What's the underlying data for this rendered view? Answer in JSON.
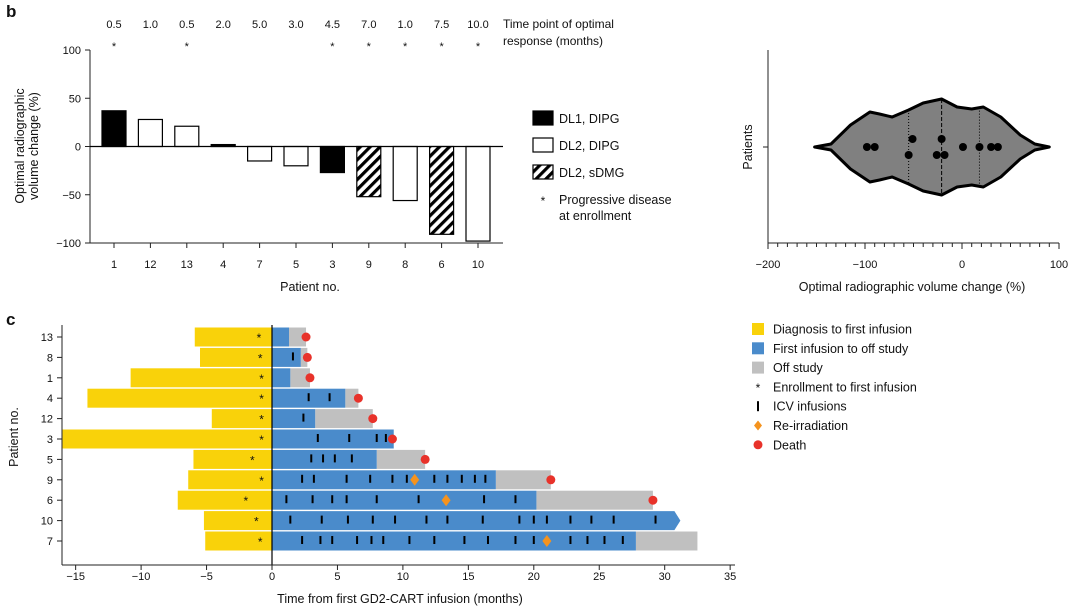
{
  "colors": {
    "diagnosis": "#f9d20a",
    "infusion": "#4a8bcb",
    "offstudy": "#c0c0c0",
    "reirradiation": "#f5931e",
    "death": "#e8322a",
    "violin": "#808080"
  },
  "chart_data": [
    {
      "panel_label": "b",
      "type": "bar",
      "xlabel": "Patient no.",
      "ylabel_lines": [
        "Optimal radiographic",
        "volume change (%)"
      ],
      "ylim": [
        -100,
        100
      ],
      "yticks": [
        100,
        50,
        0,
        -50,
        -100
      ],
      "yticks_labels": [
        "100",
        "50",
        "0",
        "−50",
        "−100"
      ],
      "categories": [
        "1",
        "12",
        "13",
        "4",
        "7",
        "5",
        "3",
        "9",
        "8",
        "6",
        "10"
      ],
      "values": [
        37,
        28,
        21,
        2,
        -15,
        -20,
        -27,
        -52,
        -56,
        -91,
        -98
      ],
      "groups": [
        "DL1, DIPG",
        "DL2, DIPG",
        "DL2, DIPG",
        "DL1, DIPG",
        "DL2, DIPG",
        "DL2, DIPG",
        "DL1, DIPG",
        "DL2, sDMG",
        "DL2, DIPG",
        "DL2, sDMG",
        "DL2, DIPG"
      ],
      "time_points": [
        "0.5",
        "1.0",
        "0.5",
        "2.0",
        "5.0",
        "3.0",
        "4.5",
        "7.0",
        "1.0",
        "7.5",
        "10.0"
      ],
      "progressive": [
        true,
        false,
        true,
        false,
        false,
        false,
        true,
        true,
        true,
        true,
        true
      ],
      "time_title_lines": [
        "Time point of optimal",
        "response (months)"
      ],
      "legend": [
        {
          "label": "DL1, DIPG",
          "style": "solid"
        },
        {
          "label": "DL2, DIPG",
          "style": "open"
        },
        {
          "label": "DL2, sDMG",
          "style": "hatched"
        },
        {
          "label_lines": [
            "Progressive disease",
            "at enrollment"
          ],
          "style": "asterisk"
        }
      ],
      "asterisk": "*"
    },
    {
      "type": "violin",
      "xlabel": "Optimal radiographic volume change (%)",
      "ylabel": "Patients",
      "xlim": [
        -200,
        100
      ],
      "xticks": [
        -200,
        -100,
        0,
        100
      ],
      "xticks_labels": [
        "−200",
        "−100",
        "0",
        "100"
      ],
      "points": [
        -98,
        -90,
        -55,
        -51,
        -26,
        -21,
        -18,
        1,
        18,
        30,
        37
      ],
      "quartiles": [
        -55,
        -21,
        18
      ]
    },
    {
      "panel_label": "c",
      "type": "swimmer",
      "xlabel": "Time from first GD2-CART infusion (months)",
      "ylabel": "Patient no.",
      "xlim": [
        -16,
        35
      ],
      "xticks": [
        -15,
        -10,
        -5,
        0,
        5,
        10,
        15,
        20,
        25,
        30,
        35
      ],
      "xticks_labels": [
        "−15",
        "−10",
        "−5",
        "0",
        "5",
        "10",
        "15",
        "20",
        "25",
        "30",
        "35"
      ],
      "patients": [
        {
          "id": "13",
          "diagnosis": -5.9,
          "enrollment": -1.0,
          "on_study_end": 1.3,
          "off_study_end": 2.6,
          "death": 2.6,
          "infusions": [],
          "reirradiation": null,
          "ongoing": false
        },
        {
          "id": "8",
          "diagnosis": -5.5,
          "enrollment": -0.9,
          "on_study_end": 2.2,
          "off_study_end": 2.7,
          "death": 2.7,
          "infusions": [
            1.6
          ],
          "reirradiation": null,
          "ongoing": false
        },
        {
          "id": "1",
          "diagnosis": -10.8,
          "enrollment": -0.8,
          "on_study_end": 1.4,
          "off_study_end": 2.9,
          "death": 2.9,
          "infusions": [],
          "reirradiation": null,
          "ongoing": false
        },
        {
          "id": "4",
          "diagnosis": -14.1,
          "enrollment": -0.8,
          "on_study_end": 5.6,
          "off_study_end": 6.6,
          "death": 6.6,
          "infusions": [
            2.8,
            4.4
          ],
          "reirradiation": null,
          "ongoing": false
        },
        {
          "id": "12",
          "diagnosis": -4.6,
          "enrollment": -0.8,
          "on_study_end": 3.3,
          "off_study_end": 7.7,
          "death": 7.7,
          "infusions": [
            2.4
          ],
          "reirradiation": null,
          "ongoing": false
        },
        {
          "id": "3",
          "diagnosis": -16,
          "enrollment": -0.8,
          "on_study_end": 9.3,
          "off_study_end": 9.3,
          "death": 9.2,
          "infusions": [
            3.5,
            5.9,
            8.0,
            8.7
          ],
          "reirradiation": null,
          "ongoing": false
        },
        {
          "id": "5",
          "diagnosis": -6.0,
          "enrollment": -1.5,
          "on_study_end": 8.0,
          "off_study_end": 11.7,
          "death": 11.7,
          "infusions": [
            3.0,
            3.9,
            4.8,
            6.1
          ],
          "reirradiation": null,
          "ongoing": false
        },
        {
          "id": "9",
          "diagnosis": -6.4,
          "enrollment": -0.8,
          "on_study_end": 17.1,
          "off_study_end": 21.3,
          "death": 21.3,
          "infusions": [
            2.3,
            3.2,
            5.7,
            7.5,
            9.2,
            10.3,
            12.4,
            13.4,
            14.5,
            15.5,
            16.3
          ],
          "reirradiation": 10.9,
          "ongoing": false
        },
        {
          "id": "6",
          "diagnosis": -7.2,
          "enrollment": -2.0,
          "on_study_end": 20.2,
          "off_study_end": 29.1,
          "death": 29.1,
          "infusions": [
            1.1,
            3.1,
            4.6,
            5.7,
            8.0,
            11.2,
            16.2,
            18.6
          ],
          "reirradiation": 13.3,
          "ongoing": false
        },
        {
          "id": "10",
          "diagnosis": -5.2,
          "enrollment": -1.2,
          "on_study_end": 31.2,
          "off_study_end": null,
          "death": null,
          "infusions": [
            1.4,
            3.8,
            5.8,
            7.7,
            9.4,
            11.8,
            13.4,
            16.1,
            18.9,
            20.0,
            21.0,
            22.8,
            24.4,
            26.1,
            29.3
          ],
          "reirradiation": null,
          "ongoing": true
        },
        {
          "id": "7",
          "diagnosis": -5.1,
          "enrollment": -0.9,
          "on_study_end": 27.8,
          "off_study_end": 32.5,
          "death": null,
          "infusions": [
            2.3,
            3.7,
            4.6,
            6.5,
            7.6,
            8.5,
            10.5,
            12.4,
            14.7,
            16.5,
            18.6,
            20.0,
            22.8,
            24.1,
            25.4,
            26.8
          ],
          "reirradiation": 21.0,
          "ongoing": false
        }
      ],
      "legend": [
        {
          "label": "Diagnosis to first infusion",
          "marker": "yellow-square"
        },
        {
          "label": "First infusion to off study",
          "marker": "blue-square"
        },
        {
          "label": "Off study",
          "marker": "grey-square"
        },
        {
          "label": "Enrollment to first infusion",
          "marker": "asterisk"
        },
        {
          "label": "ICV infusions",
          "marker": "tick"
        },
        {
          "label": "Re-irradiation",
          "marker": "diamond"
        },
        {
          "label": "Death",
          "marker": "circle"
        }
      ]
    }
  ]
}
